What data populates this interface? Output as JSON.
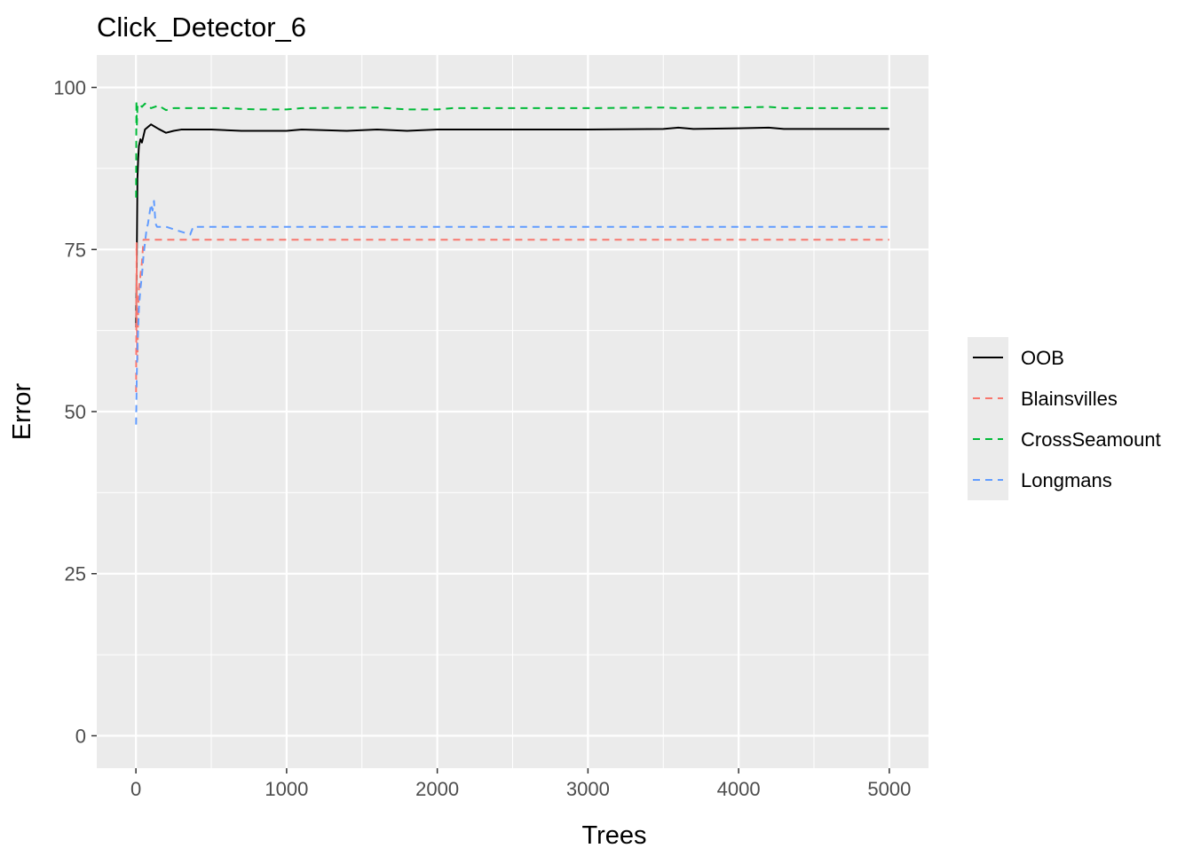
{
  "chart_data": {
    "type": "line",
    "title": "Click_Detector_6",
    "xlabel": "Trees",
    "ylabel": "Error",
    "xlim": [
      -260,
      5260
    ],
    "ylim": [
      -5,
      105
    ],
    "x_ticks": [
      0,
      1000,
      2000,
      3000,
      4000,
      5000
    ],
    "x_tick_labels": [
      "0",
      "1000",
      "2000",
      "3000",
      "4000",
      "5000"
    ],
    "y_ticks": [
      0,
      25,
      50,
      75,
      100
    ],
    "y_tick_labels": [
      "0",
      "25",
      "50",
      "75",
      "100"
    ],
    "grid": true,
    "legend_position": "right",
    "background_color": "#ebebeb",
    "series": [
      {
        "name": "OOB",
        "color": "#000000",
        "dash": "solid",
        "points": [
          [
            1,
            63
          ],
          [
            5,
            72
          ],
          [
            10,
            86
          ],
          [
            15,
            89
          ],
          [
            20,
            91
          ],
          [
            30,
            92
          ],
          [
            40,
            91.5
          ],
          [
            60,
            93.5
          ],
          [
            100,
            94.3
          ],
          [
            150,
            93.6
          ],
          [
            200,
            93
          ],
          [
            250,
            93.3
          ],
          [
            300,
            93.5
          ],
          [
            500,
            93.5
          ],
          [
            700,
            93.3
          ],
          [
            1000,
            93.3
          ],
          [
            1100,
            93.5
          ],
          [
            1400,
            93.3
          ],
          [
            1600,
            93.5
          ],
          [
            1800,
            93.3
          ],
          [
            2000,
            93.5
          ],
          [
            2500,
            93.5
          ],
          [
            3000,
            93.5
          ],
          [
            3500,
            93.6
          ],
          [
            3600,
            93.8
          ],
          [
            3700,
            93.6
          ],
          [
            4000,
            93.7
          ],
          [
            4200,
            93.8
          ],
          [
            4300,
            93.6
          ],
          [
            5000,
            93.6
          ]
        ]
      },
      {
        "name": "Blainsvilles",
        "color": "#f8766d",
        "dash": "dashed",
        "points": [
          [
            1,
            53
          ],
          [
            4,
            76
          ],
          [
            7,
            60
          ],
          [
            10,
            58
          ],
          [
            15,
            66
          ],
          [
            20,
            69
          ],
          [
            30,
            71
          ],
          [
            40,
            73
          ],
          [
            50,
            76.5
          ],
          [
            100,
            76.5
          ],
          [
            1000,
            76.5
          ],
          [
            2000,
            76.5
          ],
          [
            3000,
            76.5
          ],
          [
            4000,
            76.5
          ],
          [
            5000,
            76.5
          ]
        ]
      },
      {
        "name": "CrossSeamount",
        "color": "#00ba38",
        "dash": "dashed",
        "points": [
          [
            1,
            83
          ],
          [
            3,
            98
          ],
          [
            6,
            94
          ],
          [
            10,
            97
          ],
          [
            20,
            97.5
          ],
          [
            40,
            97
          ],
          [
            60,
            97.5
          ],
          [
            100,
            96.8
          ],
          [
            150,
            97.2
          ],
          [
            200,
            96.5
          ],
          [
            250,
            96.8
          ],
          [
            300,
            96.8
          ],
          [
            600,
            96.8
          ],
          [
            800,
            96.6
          ],
          [
            1000,
            96.6
          ],
          [
            1100,
            96.8
          ],
          [
            1600,
            96.9
          ],
          [
            1800,
            96.6
          ],
          [
            2000,
            96.6
          ],
          [
            2100,
            96.8
          ],
          [
            3000,
            96.8
          ],
          [
            3500,
            96.9
          ],
          [
            3600,
            96.8
          ],
          [
            4000,
            96.9
          ],
          [
            4200,
            97
          ],
          [
            4300,
            96.8
          ],
          [
            5000,
            96.8
          ]
        ]
      },
      {
        "name": "Longmans",
        "color": "#619cff",
        "dash": "dashed",
        "points": [
          [
            1,
            48
          ],
          [
            5,
            55
          ],
          [
            10,
            60
          ],
          [
            15,
            63
          ],
          [
            20,
            66
          ],
          [
            30,
            69
          ],
          [
            40,
            71
          ],
          [
            50,
            74
          ],
          [
            60,
            76
          ],
          [
            70,
            78
          ],
          [
            80,
            79
          ],
          [
            90,
            80.5
          ],
          [
            100,
            82
          ],
          [
            110,
            81
          ],
          [
            120,
            82.5
          ],
          [
            130,
            79
          ],
          [
            140,
            78.5
          ],
          [
            200,
            78.5
          ],
          [
            360,
            77.3
          ],
          [
            380,
            78.5
          ],
          [
            500,
            78.5
          ],
          [
            1000,
            78.5
          ],
          [
            2000,
            78.5
          ],
          [
            3000,
            78.5
          ],
          [
            4000,
            78.5
          ],
          [
            5000,
            78.5
          ]
        ]
      }
    ]
  }
}
